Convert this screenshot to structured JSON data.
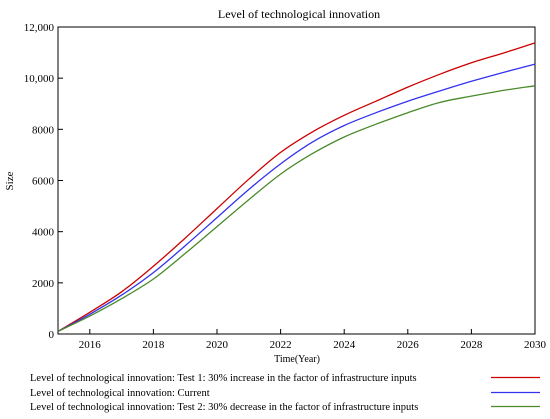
{
  "chart_data": {
    "type": "line",
    "title": "Level of technological innovation",
    "xlabel": "Time(Year)",
    "ylabel": "Size",
    "xlim": [
      2015,
      2030
    ],
    "ylim": [
      0,
      12000
    ],
    "x_ticks": [
      2016,
      2018,
      2020,
      2022,
      2024,
      2026,
      2028,
      2030
    ],
    "y_ticks": [
      0,
      2000,
      4000,
      6000,
      8000,
      10000,
      12000
    ],
    "y_tick_labels": [
      "0",
      "2000",
      "4000",
      "6000",
      "8000",
      "10,000",
      "12,000"
    ],
    "grid": false,
    "legend_position": "bottom",
    "x": [
      2015,
      2016,
      2017,
      2018,
      2019,
      2020,
      2021,
      2022,
      2023,
      2024,
      2025,
      2026,
      2027,
      2028,
      2029,
      2030
    ],
    "series": [
      {
        "name": "Level of technological innovation: Test 1: 30% increase in the factor of infrastructure inputs",
        "color": "#cc0000",
        "values": [
          100,
          850,
          1650,
          2650,
          3750,
          4900,
          6050,
          7100,
          7900,
          8550,
          9100,
          9650,
          10150,
          10600,
          10980,
          11380
        ]
      },
      {
        "name": "Level of technological innovation: Current",
        "color": "#3333ee",
        "values": [
          100,
          770,
          1520,
          2400,
          3450,
          4550,
          5650,
          6650,
          7500,
          8150,
          8650,
          9100,
          9500,
          9880,
          10220,
          10550
        ]
      },
      {
        "name": "Level of technological innovation: Test 2: 30% decrease in the factor of infrastructure inputs",
        "color": "#4a8a2a",
        "values": [
          100,
          700,
          1380,
          2150,
          3150,
          4200,
          5250,
          6250,
          7050,
          7700,
          8200,
          8650,
          9050,
          9300,
          9520,
          9700
        ]
      }
    ]
  }
}
